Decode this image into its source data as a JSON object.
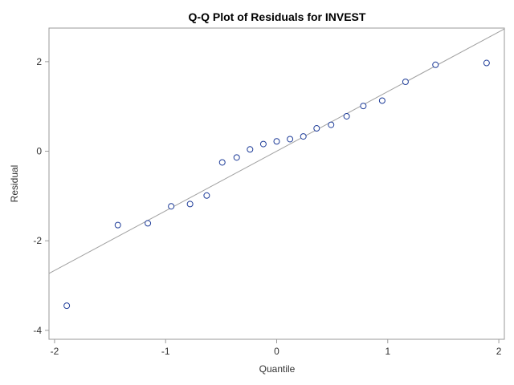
{
  "chart_data": {
    "type": "scatter",
    "title": "Q-Q Plot of Residuals for INVEST",
    "xlabel": "Quantile",
    "ylabel": "Residual",
    "xlim": [
      -2.05,
      2.05
    ],
    "ylim": [
      -4.2,
      2.75
    ],
    "x_ticks": [
      -2,
      -1,
      0,
      1,
      2
    ],
    "x_tick_labels": [
      "-2",
      "-1",
      "0",
      "1",
      "2"
    ],
    "y_ticks": [
      -4,
      -2,
      0,
      2
    ],
    "y_tick_labels": [
      "-4",
      "-2",
      "0",
      "2"
    ],
    "grid": false,
    "legend": "none",
    "series": [
      {
        "kind": "points",
        "color": "#1f3d99",
        "x": [
          -1.89,
          -1.43,
          -1.16,
          -0.95,
          -0.78,
          -0.63,
          -0.49,
          -0.36,
          -0.24,
          -0.12,
          0.0,
          0.12,
          0.24,
          0.36,
          0.49,
          0.63,
          0.78,
          0.95,
          1.16,
          1.43,
          1.89
        ],
        "y": [
          -3.45,
          -1.65,
          -1.61,
          -1.23,
          -1.18,
          -0.99,
          -0.25,
          -0.14,
          0.04,
          0.16,
          0.22,
          0.27,
          0.33,
          0.51,
          0.59,
          0.78,
          1.01,
          1.13,
          1.55,
          1.93,
          1.97
        ]
      },
      {
        "kind": "reference-line",
        "color": "#a0a0a0",
        "x": [
          -2.05,
          2.05
        ],
        "y": [
          -2.73,
          2.73
        ]
      }
    ]
  }
}
